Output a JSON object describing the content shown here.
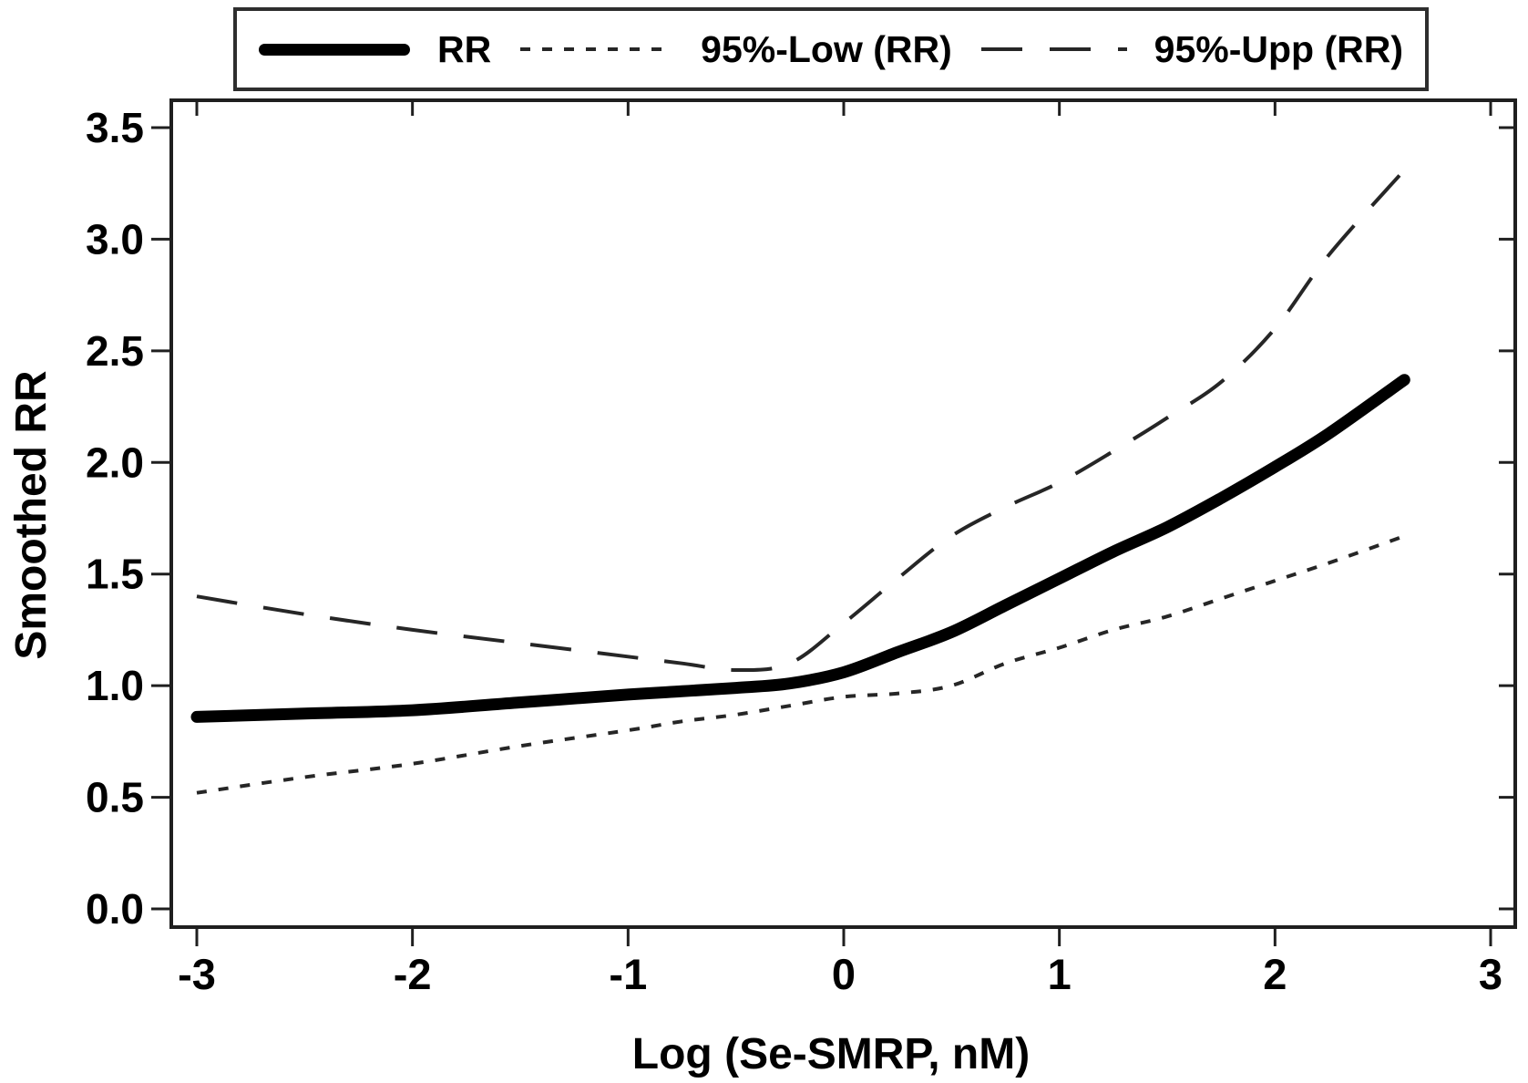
{
  "colors": {
    "curve_main": "#000000",
    "curve_ci": "#262626",
    "frame": "#1f1f1f",
    "text": "#000000",
    "background": "#ffffff"
  },
  "legend": {
    "items": [
      {
        "label": "RR",
        "style": "solid-thick"
      },
      {
        "label": "95%-Low (RR)",
        "style": "dotted"
      },
      {
        "label": "95%-Upp (RR)",
        "style": "long-dash"
      }
    ]
  },
  "chart_data": {
    "type": "line",
    "title": "",
    "xlabel": "Log (Se-SMRP, nM)",
    "ylabel": "Smoothed RR",
    "xlim": [
      -3,
      3
    ],
    "ylim": [
      0,
      3.5
    ],
    "grid": false,
    "legend_position": "top",
    "x_tick_labels": [
      "-3",
      "-2",
      "-1",
      "0",
      "1",
      "2",
      "3"
    ],
    "x_tick_values": [
      -3,
      -2,
      -1,
      0,
      1,
      2,
      3
    ],
    "y_tick_labels": [
      "0.0",
      "0.5",
      "1.0",
      "1.5",
      "2.0",
      "2.5",
      "3.0",
      "3.5"
    ],
    "y_tick_values": [
      0,
      0.5,
      1,
      1.5,
      2,
      2.5,
      3,
      3.5
    ],
    "x": [
      -3,
      -2.5,
      -2,
      -1.5,
      -1,
      -0.75,
      -0.5,
      -0.25,
      0,
      0.25,
      0.5,
      0.75,
      1,
      1.25,
      1.5,
      1.75,
      2,
      2.25,
      2.6
    ],
    "series": [
      {
        "name": "RR",
        "style": "solid-thick",
        "values": [
          0.86,
          0.875,
          0.89,
          0.925,
          0.96,
          0.975,
          0.99,
          1.01,
          1.06,
          1.15,
          1.24,
          1.36,
          1.48,
          1.6,
          1.71,
          1.84,
          1.98,
          2.13,
          2.37
        ]
      },
      {
        "name": "95%-Low (RR)",
        "style": "dotted",
        "values": [
          0.52,
          0.59,
          0.65,
          0.73,
          0.8,
          0.84,
          0.87,
          0.91,
          0.95,
          0.965,
          1.0,
          1.1,
          1.17,
          1.25,
          1.31,
          1.39,
          1.47,
          1.55,
          1.67
        ]
      },
      {
        "name": "95%-Upp (RR)",
        "style": "long-dash",
        "values": [
          1.4,
          1.32,
          1.25,
          1.19,
          1.13,
          1.1,
          1.07,
          1.1,
          1.28,
          1.48,
          1.67,
          1.8,
          1.91,
          2.05,
          2.2,
          2.36,
          2.6,
          2.93,
          3.31
        ]
      }
    ]
  }
}
